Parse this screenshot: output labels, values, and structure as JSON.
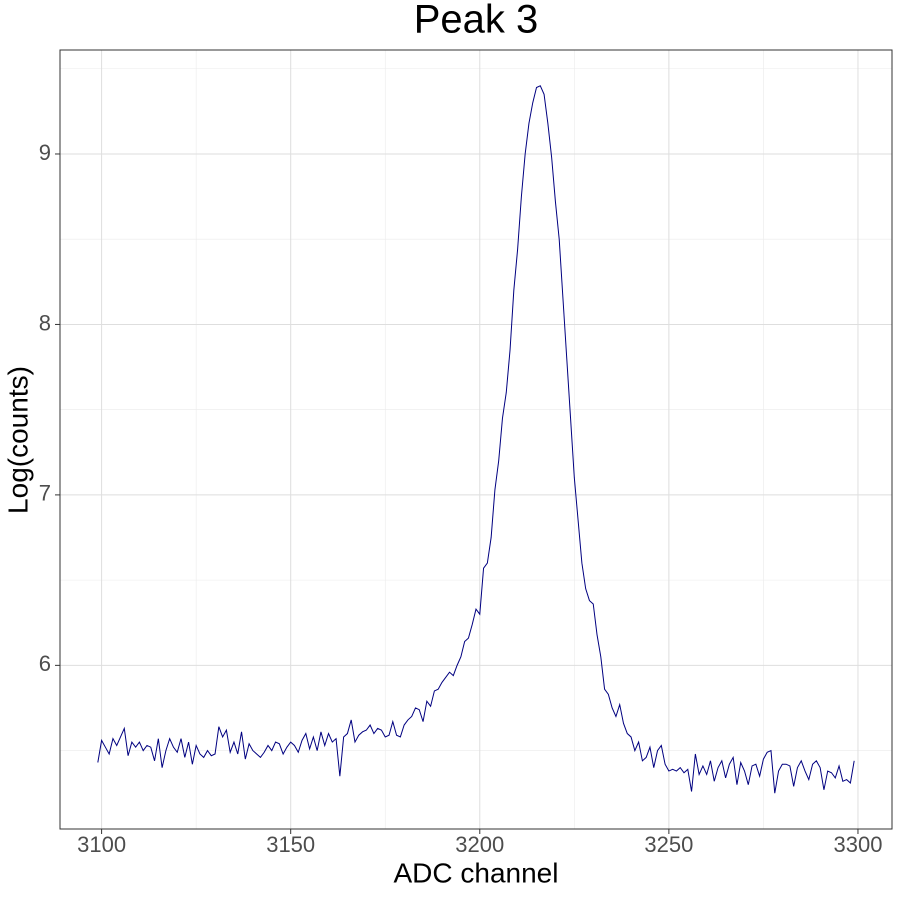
{
  "chart_data": {
    "type": "line",
    "title": "Peak 3",
    "x_label": "ADC channel",
    "y_label": "Log(counts)",
    "x": [
      3099,
      3100,
      3101,
      3102,
      3103,
      3104,
      3105,
      3106,
      3107,
      3108,
      3109,
      3110,
      3111,
      3112,
      3113,
      3114,
      3115,
      3116,
      3117,
      3118,
      3119,
      3120,
      3121,
      3122,
      3123,
      3124,
      3125,
      3126,
      3127,
      3128,
      3129,
      3130,
      3131,
      3132,
      3133,
      3134,
      3135,
      3136,
      3137,
      3138,
      3139,
      3140,
      3141,
      3142,
      3143,
      3144,
      3145,
      3146,
      3147,
      3148,
      3149,
      3150,
      3151,
      3152,
      3153,
      3154,
      3155,
      3156,
      3157,
      3158,
      3159,
      3160,
      3161,
      3162,
      3163,
      3164,
      3165,
      3166,
      3167,
      3168,
      3169,
      3170,
      3171,
      3172,
      3173,
      3174,
      3175,
      3176,
      3177,
      3178,
      3179,
      3180,
      3181,
      3182,
      3183,
      3184,
      3185,
      3186,
      3187,
      3188,
      3189,
      3190,
      3191,
      3192,
      3193,
      3194,
      3195,
      3196,
      3197,
      3198,
      3199,
      3200,
      3201,
      3202,
      3203,
      3204,
      3205,
      3206,
      3207,
      3208,
      3209,
      3210,
      3211,
      3212,
      3213,
      3214,
      3215,
      3216,
      3217,
      3218,
      3219,
      3220,
      3221,
      3222,
      3223,
      3224,
      3225,
      3226,
      3227,
      3228,
      3229,
      3230,
      3231,
      3232,
      3233,
      3234,
      3235,
      3236,
      3237,
      3238,
      3239,
      3240,
      3241,
      3242,
      3243,
      3244,
      3245,
      3246,
      3247,
      3248,
      3249,
      3250,
      3251,
      3252,
      3253,
      3254,
      3255,
      3256,
      3257,
      3258,
      3259,
      3260,
      3261,
      3262,
      3263,
      3264,
      3265,
      3266,
      3267,
      3268,
      3269,
      3270,
      3271,
      3272,
      3273,
      3274,
      3275,
      3276,
      3277,
      3278,
      3279,
      3280,
      3281,
      3282,
      3283,
      3284,
      3285,
      3286,
      3287,
      3288,
      3289,
      3290,
      3291,
      3292,
      3293,
      3294,
      3295,
      3296,
      3297,
      3298,
      3299
    ],
    "values": [
      5.43,
      5.56,
      5.52,
      5.48,
      5.57,
      5.53,
      5.58,
      5.63,
      5.47,
      5.55,
      5.52,
      5.55,
      5.5,
      5.53,
      5.52,
      5.44,
      5.57,
      5.4,
      5.5,
      5.57,
      5.52,
      5.49,
      5.57,
      5.46,
      5.55,
      5.42,
      5.53,
      5.48,
      5.46,
      5.5,
      5.47,
      5.48,
      5.64,
      5.58,
      5.62,
      5.49,
      5.55,
      5.48,
      5.61,
      5.45,
      5.54,
      5.5,
      5.48,
      5.46,
      5.49,
      5.53,
      5.5,
      5.55,
      5.54,
      5.48,
      5.52,
      5.55,
      5.53,
      5.49,
      5.56,
      5.6,
      5.51,
      5.58,
      5.5,
      5.61,
      5.53,
      5.6,
      5.55,
      5.57,
      5.35,
      5.58,
      5.6,
      5.68,
      5.55,
      5.59,
      5.61,
      5.62,
      5.65,
      5.6,
      5.63,
      5.62,
      5.58,
      5.59,
      5.67,
      5.59,
      5.58,
      5.65,
      5.68,
      5.7,
      5.75,
      5.74,
      5.67,
      5.79,
      5.76,
      5.85,
      5.86,
      5.9,
      5.93,
      5.96,
      5.94,
      6.0,
      6.05,
      6.14,
      6.16,
      6.24,
      6.33,
      6.3,
      6.57,
      6.6,
      6.75,
      7.03,
      7.2,
      7.45,
      7.6,
      7.85,
      8.2,
      8.44,
      8.75,
      9.0,
      9.18,
      9.3,
      9.39,
      9.4,
      9.35,
      9.18,
      8.98,
      8.72,
      8.5,
      8.15,
      7.8,
      7.45,
      7.1,
      6.85,
      6.6,
      6.45,
      6.38,
      6.36,
      6.18,
      6.05,
      5.86,
      5.83,
      5.75,
      5.7,
      5.77,
      5.66,
      5.6,
      5.58,
      5.5,
      5.55,
      5.44,
      5.46,
      5.52,
      5.4,
      5.5,
      5.53,
      5.42,
      5.38,
      5.39,
      5.38,
      5.4,
      5.37,
      5.39,
      5.26,
      5.48,
      5.36,
      5.41,
      5.36,
      5.44,
      5.32,
      5.4,
      5.44,
      5.34,
      5.42,
      5.46,
      5.3,
      5.43,
      5.38,
      5.3,
      5.41,
      5.42,
      5.35,
      5.45,
      5.49,
      5.5,
      5.25,
      5.38,
      5.42,
      5.42,
      5.41,
      5.29,
      5.4,
      5.44,
      5.38,
      5.33,
      5.42,
      5.44,
      5.4,
      5.27,
      5.38,
      5.37,
      5.34,
      5.41,
      5.32,
      5.33,
      5.31,
      5.44
    ],
    "color": "navy",
    "xlim": [
      3089,
      3309
    ],
    "ylim": [
      5.04,
      9.61
    ],
    "xticks": [
      3100,
      3150,
      3200,
      3250,
      3300
    ],
    "yticks": [
      6,
      7,
      8,
      9
    ],
    "minor_xticks": [
      3125,
      3175,
      3225,
      3275
    ],
    "minor_yticks": [
      5.5,
      6.5,
      7.5,
      8.5,
      9.5
    ],
    "grid": true
  }
}
